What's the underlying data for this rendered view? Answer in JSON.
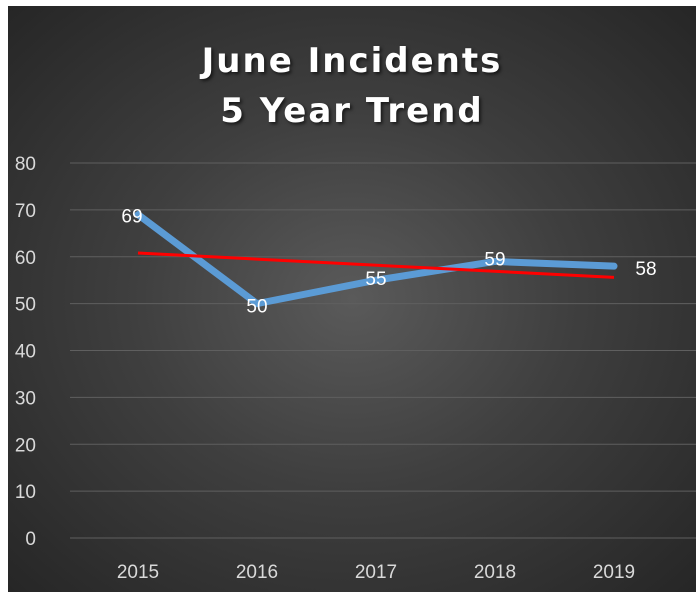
{
  "chart_data": {
    "type": "line",
    "title_lines": [
      "June Incidents",
      "5 Year Trend"
    ],
    "categories": [
      "2015",
      "2016",
      "2017",
      "2018",
      "2019"
    ],
    "series": [
      {
        "values": [
          69,
          50,
          55,
          59,
          58
        ],
        "color": "#5b9bd5",
        "data_labels": [
          "69",
          "50",
          "55",
          "59",
          "58"
        ]
      }
    ],
    "trendline": {
      "type": "linear",
      "color": "#ff0000"
    },
    "ylim": [
      0,
      80
    ],
    "yticks": [
      0,
      10,
      20,
      30,
      40,
      50,
      60,
      70,
      80
    ],
    "ytick_labels": [
      "0",
      "10",
      "20",
      "30",
      "40",
      "50",
      "60",
      "70",
      "80"
    ],
    "grid": true,
    "legend": "none",
    "background": "#3f3f3f",
    "xlabel": "",
    "ylabel": ""
  }
}
